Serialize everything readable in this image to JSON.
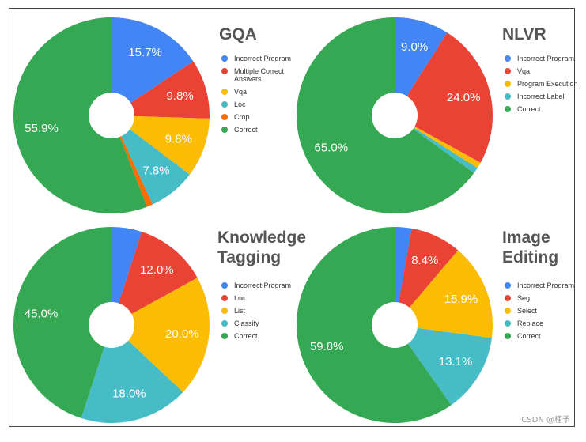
{
  "colors": {
    "blue": "#4285F4",
    "red": "#EA4335",
    "yellow": "#FBBC04",
    "teal": "#46BDC6",
    "orange": "#FF6D01",
    "green": "#34A853",
    "hole": "#ffffff",
    "label": "#ffffff"
  },
  "watermark": "CSDN @槿予",
  "chart_data": [
    {
      "type": "pie",
      "title": "GQA",
      "donut": true,
      "legend_position": "right",
      "slices": [
        {
          "label": "Incorrect Program",
          "value": 15.7,
          "value_label": "15.7%",
          "color": "#4285F4"
        },
        {
          "label": "Multiple Correct Answers",
          "value": 9.8,
          "value_label": "9.8%",
          "color": "#EA4335"
        },
        {
          "label": "Vqa",
          "value": 9.8,
          "value_label": "9.8%",
          "color": "#FBBC04"
        },
        {
          "label": "Loc",
          "value": 7.8,
          "value_label": "7.8%",
          "color": "#46BDC6"
        },
        {
          "label": "Crop",
          "value": 1.0,
          "value_label": "",
          "color": "#FF6D01"
        },
        {
          "label": "Correct",
          "value": 55.9,
          "value_label": "55.9%",
          "color": "#34A853"
        }
      ]
    },
    {
      "type": "pie",
      "title": "NLVR",
      "donut": true,
      "legend_position": "right",
      "slices": [
        {
          "label": "Incorrect Program",
          "value": 9.0,
          "value_label": "9.0%",
          "color": "#4285F4"
        },
        {
          "label": "Vqa",
          "value": 24.0,
          "value_label": "24.0%",
          "color": "#EA4335"
        },
        {
          "label": "Program Execution",
          "value": 1.0,
          "value_label": "",
          "color": "#FBBC04"
        },
        {
          "label": "Incorrect Label",
          "value": 1.0,
          "value_label": "",
          "color": "#46BDC6"
        },
        {
          "label": "Correct",
          "value": 65.0,
          "value_label": "65.0%",
          "color": "#34A853"
        }
      ]
    },
    {
      "type": "pie",
      "title": "Knowledge Tagging",
      "donut": true,
      "legend_position": "right",
      "slices": [
        {
          "label": "Incorrect Program",
          "value": 5.0,
          "value_label": "",
          "color": "#4285F4"
        },
        {
          "label": "Loc",
          "value": 12.0,
          "value_label": "12.0%",
          "color": "#EA4335"
        },
        {
          "label": "List",
          "value": 20.0,
          "value_label": "20.0%",
          "color": "#FBBC04"
        },
        {
          "label": "Classify",
          "value": 18.0,
          "value_label": "18.0%",
          "color": "#46BDC6"
        },
        {
          "label": "Correct",
          "value": 45.0,
          "value_label": "45.0%",
          "color": "#34A853"
        }
      ]
    },
    {
      "type": "pie",
      "title": "Image Editing",
      "donut": true,
      "legend_position": "right",
      "slices": [
        {
          "label": "Incorrect Program",
          "value": 2.8,
          "value_label": "",
          "color": "#4285F4"
        },
        {
          "label": "Seg",
          "value": 8.4,
          "value_label": "8.4%",
          "color": "#EA4335"
        },
        {
          "label": "Select",
          "value": 15.9,
          "value_label": "15.9%",
          "color": "#FBBC04"
        },
        {
          "label": "Replace",
          "value": 13.1,
          "value_label": "13.1%",
          "color": "#46BDC6"
        },
        {
          "label": "Correct",
          "value": 59.8,
          "value_label": "59.8%",
          "color": "#34A853"
        }
      ]
    }
  ]
}
